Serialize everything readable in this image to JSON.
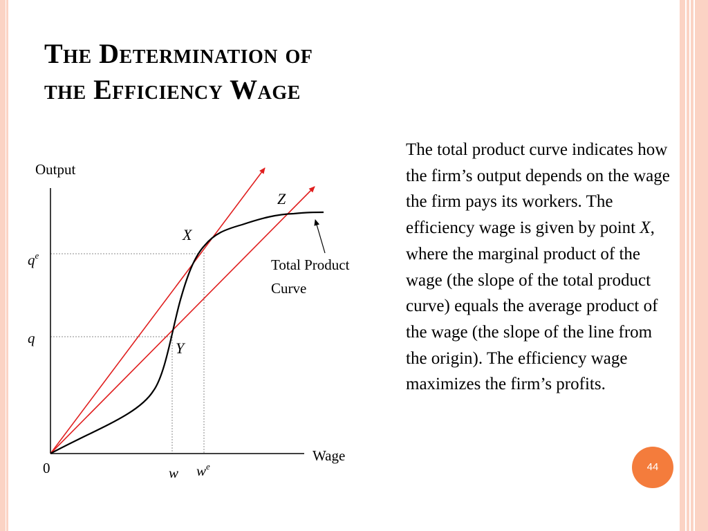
{
  "slide": {
    "title_line1": "The Determination of",
    "title_line2": "the Efficiency Wage",
    "page_number": "44"
  },
  "diagram": {
    "y_axis_label": "Output",
    "x_axis_label": "Wage",
    "origin_label": "0",
    "tick_qe_base": "q",
    "tick_qe_sup": "e",
    "tick_q": "q",
    "tick_w": "w",
    "tick_we_base": "w",
    "tick_we_sup": "e",
    "point_x": "X",
    "point_y": "Y",
    "point_z": "Z",
    "curve_label_line1": "Total Product",
    "curve_label_line2": "Curve",
    "colors": {
      "axis": "#000000",
      "rays": "#e01e1e",
      "curve": "#000000",
      "guides": "#888888",
      "accent": "#f47c3c"
    }
  },
  "description": {
    "part1": "The total product curve indicates how the firm’s output depends on the wage the firm pays its workers. The efficiency wage is given by point ",
    "point": "X",
    "part2": ", where the marginal product of the wage (the slope of the total product curve) equals the average product of the wage (the slope of the line from the origin).  The efficiency wage maximizes the firm’s profits."
  }
}
